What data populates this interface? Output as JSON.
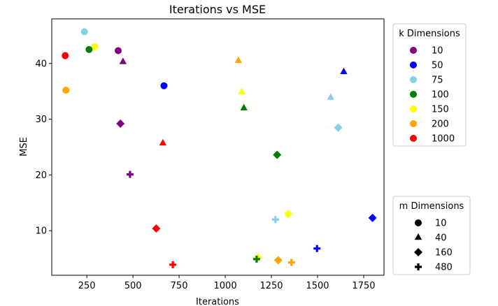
{
  "chart_data": {
    "type": "scatter",
    "title": "Iterations vs MSE",
    "xlabel": "Iterations",
    "ylabel": "MSE",
    "xlim": [
      60,
      1860
    ],
    "ylim": [
      2,
      48
    ],
    "xticks": [
      250,
      500,
      750,
      1000,
      1250,
      1500,
      1750
    ],
    "yticks": [
      10,
      20,
      30,
      40
    ],
    "grid": false,
    "legends": [
      {
        "title": "k Dimensions",
        "placement": "upper right outside",
        "entries": [
          {
            "label": "10",
            "color": "#800080"
          },
          {
            "label": "50",
            "color": "#0000ff"
          },
          {
            "label": "75",
            "color": "#87ceeb"
          },
          {
            "label": "100",
            "color": "#008000"
          },
          {
            "label": "150",
            "color": "#ffff00"
          },
          {
            "label": "200",
            "color": "#ffa500"
          },
          {
            "label": "1000",
            "color": "#ff0000"
          }
        ]
      },
      {
        "title": "m Dimensions",
        "placement": "lower right outside",
        "entries": [
          {
            "label": "10",
            "marker": "circle"
          },
          {
            "label": "40",
            "marker": "triangle"
          },
          {
            "label": "160",
            "marker": "diamond"
          },
          {
            "label": "480",
            "marker": "plus"
          }
        ]
      }
    ],
    "points": [
      {
        "k": "75",
        "m": "10",
        "x": 237,
        "y": 45.7
      },
      {
        "k": "150",
        "m": "10",
        "x": 293,
        "y": 43.0
      },
      {
        "k": "100",
        "m": "10",
        "x": 262,
        "y": 42.5
      },
      {
        "k": "10",
        "m": "10",
        "x": 420,
        "y": 42.3
      },
      {
        "k": "1000",
        "m": "10",
        "x": 133,
        "y": 41.4
      },
      {
        "k": "50",
        "m": "10",
        "x": 668,
        "y": 36.0
      },
      {
        "k": "200",
        "m": "10",
        "x": 137,
        "y": 35.2
      },
      {
        "k": "10",
        "m": "40",
        "x": 446,
        "y": 40.3
      },
      {
        "k": "200",
        "m": "40",
        "x": 1071,
        "y": 40.5
      },
      {
        "k": "50",
        "m": "40",
        "x": 1642,
        "y": 38.5
      },
      {
        "k": "150",
        "m": "40",
        "x": 1089,
        "y": 34.9
      },
      {
        "k": "75",
        "m": "40",
        "x": 1571,
        "y": 33.9
      },
      {
        "k": "100",
        "m": "40",
        "x": 1101,
        "y": 32.0
      },
      {
        "k": "1000",
        "m": "40",
        "x": 662,
        "y": 25.7
      },
      {
        "k": "75",
        "m": "160",
        "x": 1612,
        "y": 28.5
      },
      {
        "k": "10",
        "m": "160",
        "x": 432,
        "y": 29.2
      },
      {
        "k": "100",
        "m": "160",
        "x": 1281,
        "y": 23.6
      },
      {
        "k": "150",
        "m": "160",
        "x": 1341,
        "y": 13.0
      },
      {
        "k": "50",
        "m": "160",
        "x": 1798,
        "y": 12.3
      },
      {
        "k": "1000",
        "m": "160",
        "x": 626,
        "y": 10.4
      },
      {
        "k": "200",
        "m": "160",
        "x": 1287,
        "y": 4.7
      },
      {
        "k": "10",
        "m": "480",
        "x": 484,
        "y": 20.1
      },
      {
        "k": "75",
        "m": "480",
        "x": 1272,
        "y": 12.0
      },
      {
        "k": "50",
        "m": "480",
        "x": 1497,
        "y": 6.8
      },
      {
        "k": "150",
        "m": "480",
        "x": 1179,
        "y": 5.2
      },
      {
        "k": "100",
        "m": "480",
        "x": 1170,
        "y": 4.9
      },
      {
        "k": "200",
        "m": "480",
        "x": 1359,
        "y": 4.3
      },
      {
        "k": "1000",
        "m": "480",
        "x": 716,
        "y": 3.9
      }
    ]
  }
}
